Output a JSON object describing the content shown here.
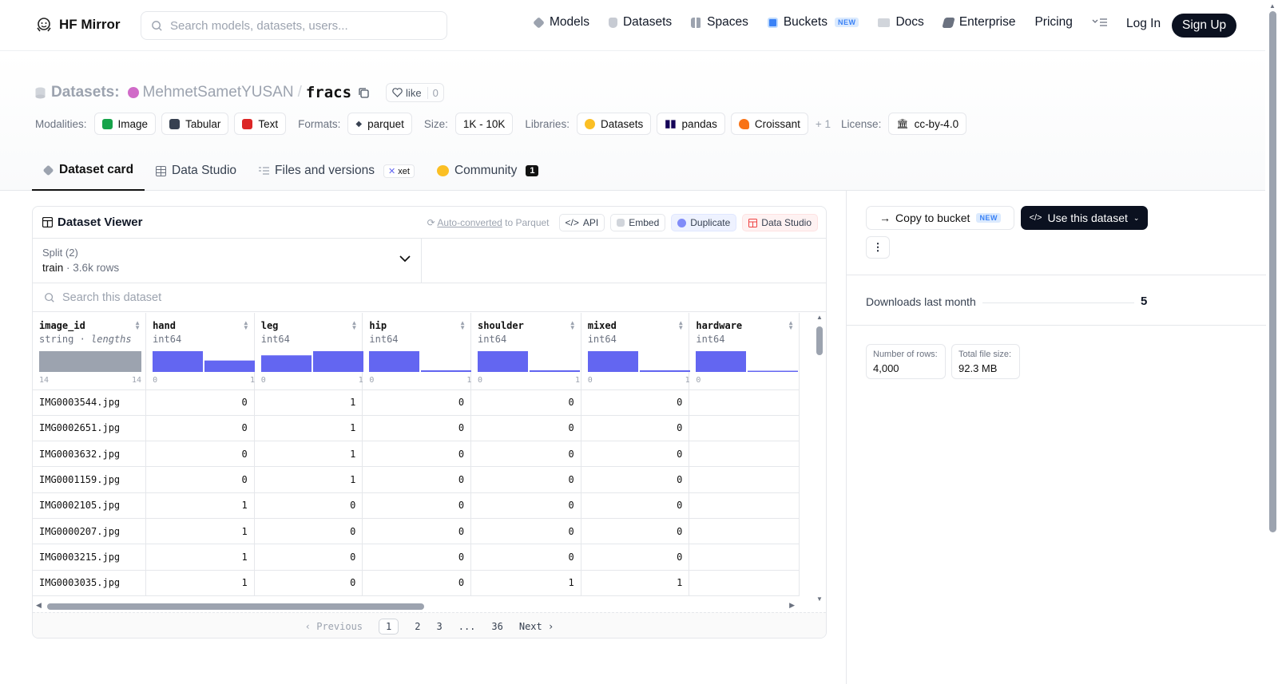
{
  "nav": {
    "brand": "HF Mirror",
    "search_placeholder": "Search models, datasets, users...",
    "links": [
      {
        "label": "Models",
        "icon": "cube-icon"
      },
      {
        "label": "Datasets",
        "icon": "database-icon"
      },
      {
        "label": "Spaces",
        "icon": "grid-icon"
      },
      {
        "label": "Buckets",
        "icon": "bucket-icon",
        "badge": "NEW"
      },
      {
        "label": "Docs",
        "icon": "book-icon"
      },
      {
        "label": "Enterprise",
        "icon": "enterprise-icon"
      },
      {
        "label": "Pricing"
      }
    ],
    "login": "Log In",
    "signup": "Sign Up"
  },
  "dataset": {
    "prefix": "Datasets:",
    "owner": "MehmetSametYUSAN",
    "separator": "/",
    "name": "fracs",
    "like_label": "like",
    "like_count": "0"
  },
  "tags": {
    "modalities_label": "Modalities:",
    "modalities": [
      "Image",
      "Tabular",
      "Text"
    ],
    "formats_label": "Formats:",
    "formats": [
      "parquet"
    ],
    "size_label": "Size:",
    "size": "1K - 10K",
    "libraries_label": "Libraries:",
    "libraries": [
      "Datasets",
      "pandas",
      "Croissant"
    ],
    "libraries_more": "+ 1",
    "license_label": "License:",
    "license": "cc-by-4.0"
  },
  "tabs": {
    "card": "Dataset card",
    "studio": "Data Studio",
    "files": "Files and versions",
    "xet": "xet",
    "community": "Community",
    "community_count": "1"
  },
  "viewer": {
    "title": "Dataset Viewer",
    "auto_converted": "Auto-converted",
    "to_parquet": "to Parquet",
    "api": "API",
    "embed": "Embed",
    "duplicate": "Duplicate",
    "data_studio": "Data Studio",
    "split_label": "Split (2)",
    "split_value": "train",
    "split_rows": "3.6k rows",
    "search_placeholder": "Search this dataset",
    "columns": [
      {
        "name": "image_id",
        "type": "string",
        "type_extra": "lengths",
        "min": "14",
        "max": "14",
        "hist": [
          1.0
        ]
      },
      {
        "name": "hand",
        "type": "int64",
        "min": "0",
        "max": "1",
        "hist": [
          1.0,
          0.55
        ]
      },
      {
        "name": "leg",
        "type": "int64",
        "min": "0",
        "max": "1",
        "hist": [
          0.8,
          1.0
        ]
      },
      {
        "name": "hip",
        "type": "int64",
        "min": "0",
        "max": "1",
        "hist": [
          1.0,
          0.08
        ]
      },
      {
        "name": "shoulder",
        "type": "int64",
        "min": "0",
        "max": "1",
        "hist": [
          1.0,
          0.08
        ]
      },
      {
        "name": "mixed",
        "type": "int64",
        "min": "0",
        "max": "1",
        "hist": [
          1.0,
          0.08
        ]
      },
      {
        "name": "hardware",
        "type": "int64",
        "min": "0",
        "max": "",
        "hist": [
          1.0,
          0.05
        ]
      }
    ],
    "rows": [
      [
        "IMG0003544.jpg",
        "0",
        "1",
        "0",
        "0",
        "0",
        ""
      ],
      [
        "IMG0002651.jpg",
        "0",
        "1",
        "0",
        "0",
        "0",
        ""
      ],
      [
        "IMG0003632.jpg",
        "0",
        "1",
        "0",
        "0",
        "0",
        ""
      ],
      [
        "IMG0001159.jpg",
        "0",
        "1",
        "0",
        "0",
        "0",
        ""
      ],
      [
        "IMG0002105.jpg",
        "1",
        "0",
        "0",
        "0",
        "0",
        ""
      ],
      [
        "IMG0000207.jpg",
        "1",
        "0",
        "0",
        "0",
        "0",
        ""
      ],
      [
        "IMG0003215.jpg",
        "1",
        "0",
        "0",
        "0",
        "0",
        ""
      ],
      [
        "IMG0003035.jpg",
        "1",
        "0",
        "0",
        "1",
        "1",
        ""
      ]
    ],
    "pager": {
      "previous": "Previous",
      "pages": [
        "1",
        "2",
        "3",
        "...",
        "36"
      ],
      "next": "Next",
      "current": "1"
    }
  },
  "side": {
    "copy_bucket": "Copy to bucket",
    "copy_badge": "NEW",
    "use_dataset": "Use this dataset",
    "more": "⋮",
    "downloads_label": "Downloads last month",
    "downloads": "5",
    "rows_label": "Number of rows:",
    "rows_value": "4,000",
    "size_label": "Total file size:",
    "size_value": "92.3 MB"
  },
  "colors": {
    "hist_bar": "#6366f1",
    "hist_string": "#9ca3af",
    "dark_button": "#0b1120"
  }
}
